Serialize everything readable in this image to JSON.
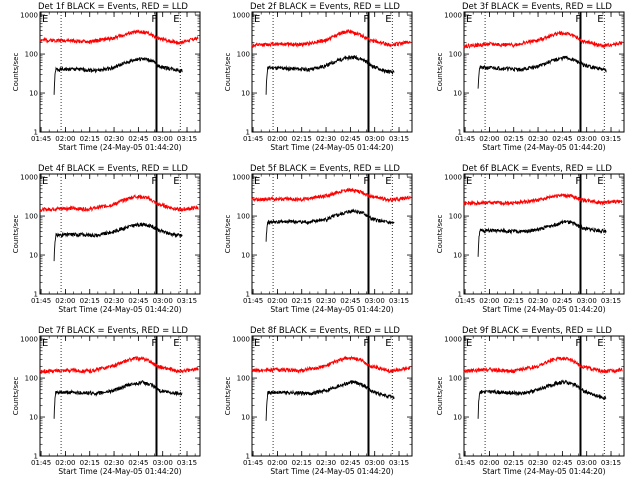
{
  "figure": {
    "ylabel": "Counts/sec",
    "xlabel": "Start Time (24-May-05 01:44:20)",
    "marker_f": "F",
    "marker_e": "E"
  },
  "axes": {
    "x_ticks": [
      "01:45",
      "02:00",
      "02:15",
      "02:30",
      "02:45",
      "03:00",
      "03:15"
    ],
    "x_range": [
      "01:44:20",
      "03:23:00"
    ],
    "y_ticks": [
      "1",
      "10",
      "100",
      "1000"
    ],
    "y_range": [
      1,
      1200
    ],
    "y_scale": "log",
    "dotted_lines_at": [
      "01:57:20",
      "03:10:50"
    ],
    "solid_line_at": "02:56:10",
    "f_at": "02:53:00",
    "e_at": "03:06:30"
  },
  "colors": {
    "events": "#000000",
    "lld": "#ff0000",
    "background": "#ffffff"
  },
  "chart_data": [
    {
      "type": "line",
      "title": "Det 1f BLACK = Events, RED = LLD",
      "series": [
        {
          "name": "Events",
          "color": "#000000",
          "start": "01:53:00",
          "end": "03:12:00",
          "profile": [
            [
              "01:53:00",
              9
            ],
            [
              "01:54:00",
              40
            ],
            [
              "02:05:00",
              41
            ],
            [
              "02:20:00",
              38
            ],
            [
              "02:30:00",
              45
            ],
            [
              "02:40:00",
              65
            ],
            [
              "02:47:00",
              78
            ],
            [
              "02:53:00",
              68
            ],
            [
              "02:58:00",
              48
            ],
            [
              "03:05:00",
              42
            ],
            [
              "03:12:00",
              37
            ]
          ]
        },
        {
          "name": "LLD",
          "color": "#ff0000",
          "start": "01:44:20",
          "end": "03:22:00",
          "profile": [
            [
              "01:44:20",
              230
            ],
            [
              "02:00:00",
              225
            ],
            [
              "02:15:00",
              205
            ],
            [
              "02:30:00",
              260
            ],
            [
              "02:43:00",
              370
            ],
            [
              "02:50:00",
              355
            ],
            [
              "02:57:00",
              250
            ],
            [
              "03:10:00",
              195
            ],
            [
              "03:22:00",
              255
            ]
          ]
        }
      ]
    },
    {
      "type": "line",
      "title": "Det 2f BLACK = Events, RED = LLD",
      "series": [
        {
          "name": "Events",
          "color": "#000000",
          "start": "01:53:00",
          "end": "03:12:00",
          "profile": [
            [
              "01:53:00",
              9
            ],
            [
              "01:54:00",
              45
            ],
            [
              "02:05:00",
              43
            ],
            [
              "02:20:00",
              40
            ],
            [
              "02:30:00",
              50
            ],
            [
              "02:40:00",
              75
            ],
            [
              "02:47:00",
              85
            ],
            [
              "02:53:00",
              72
            ],
            [
              "02:58:00",
              50
            ],
            [
              "03:05:00",
              38
            ],
            [
              "03:12:00",
              33
            ]
          ]
        },
        {
          "name": "LLD",
          "color": "#ff0000",
          "start": "01:44:20",
          "end": "03:22:00",
          "profile": [
            [
              "01:44:20",
              165
            ],
            [
              "02:00:00",
              185
            ],
            [
              "02:15:00",
              175
            ],
            [
              "02:30:00",
              225
            ],
            [
              "02:43:00",
              390
            ],
            [
              "02:50:00",
              330
            ],
            [
              "02:57:00",
              225
            ],
            [
              "03:10:00",
              170
            ],
            [
              "03:22:00",
              205
            ]
          ]
        }
      ]
    },
    {
      "type": "line",
      "title": "Det 3f BLACK = Events, RED = LLD",
      "series": [
        {
          "name": "Events",
          "color": "#000000",
          "start": "01:53:00",
          "end": "03:12:00",
          "profile": [
            [
              "01:53:00",
              13
            ],
            [
              "01:54:00",
              45
            ],
            [
              "02:05:00",
              44
            ],
            [
              "02:20:00",
              40
            ],
            [
              "02:30:00",
              48
            ],
            [
              "02:40:00",
              70
            ],
            [
              "02:47:00",
              82
            ],
            [
              "02:53:00",
              68
            ],
            [
              "02:58:00",
              52
            ],
            [
              "03:05:00",
              45
            ],
            [
              "03:12:00",
              38
            ]
          ]
        },
        {
          "name": "LLD",
          "color": "#ff0000",
          "start": "01:44:20",
          "end": "03:22:00",
          "profile": [
            [
              "01:44:20",
              160
            ],
            [
              "02:00:00",
              180
            ],
            [
              "02:15:00",
              170
            ],
            [
              "02:30:00",
              225
            ],
            [
              "02:43:00",
              345
            ],
            [
              "02:50:00",
              320
            ],
            [
              "02:57:00",
              215
            ],
            [
              "03:10:00",
              160
            ],
            [
              "03:22:00",
              195
            ]
          ]
        }
      ]
    },
    {
      "type": "line",
      "title": "Det 4f BLACK = Events, RED = LLD",
      "series": [
        {
          "name": "Events",
          "color": "#000000",
          "start": "01:53:00",
          "end": "03:12:00",
          "profile": [
            [
              "01:53:00",
              7
            ],
            [
              "01:54:00",
              32
            ],
            [
              "02:05:00",
              34
            ],
            [
              "02:20:00",
              32
            ],
            [
              "02:30:00",
              40
            ],
            [
              "02:40:00",
              55
            ],
            [
              "02:47:00",
              62
            ],
            [
              "02:53:00",
              55
            ],
            [
              "02:58:00",
              42
            ],
            [
              "03:05:00",
              35
            ],
            [
              "03:12:00",
              31
            ]
          ]
        },
        {
          "name": "LLD",
          "color": "#ff0000",
          "start": "01:44:20",
          "end": "03:22:00",
          "profile": [
            [
              "01:44:20",
              145
            ],
            [
              "02:00:00",
              160
            ],
            [
              "02:15:00",
              150
            ],
            [
              "02:30:00",
              200
            ],
            [
              "02:43:00",
              320
            ],
            [
              "02:50:00",
              300
            ],
            [
              "02:57:00",
              200
            ],
            [
              "03:10:00",
              145
            ],
            [
              "03:22:00",
              165
            ]
          ]
        }
      ]
    },
    {
      "type": "line",
      "title": "Det 5f BLACK = Events, RED = LLD",
      "series": [
        {
          "name": "Events",
          "color": "#000000",
          "start": "01:53:00",
          "end": "03:12:00",
          "profile": [
            [
              "01:53:00",
              22
            ],
            [
              "01:54:00",
              70
            ],
            [
              "02:05:00",
              72
            ],
            [
              "02:20:00",
              70
            ],
            [
              "02:30:00",
              82
            ],
            [
              "02:40:00",
              115
            ],
            [
              "02:47:00",
              140
            ],
            [
              "02:53:00",
              118
            ],
            [
              "02:58:00",
              85
            ],
            [
              "03:05:00",
              72
            ],
            [
              "03:12:00",
              65
            ]
          ]
        },
        {
          "name": "LLD",
          "color": "#ff0000",
          "start": "01:44:20",
          "end": "03:22:00",
          "profile": [
            [
              "01:44:20",
              260
            ],
            [
              "02:00:00",
              280
            ],
            [
              "02:15:00",
              265
            ],
            [
              "02:30:00",
              330
            ],
            [
              "02:43:00",
              470
            ],
            [
              "02:50:00",
              430
            ],
            [
              "02:57:00",
              320
            ],
            [
              "03:10:00",
              260
            ],
            [
              "03:22:00",
              300
            ]
          ]
        }
      ]
    },
    {
      "type": "line",
      "title": "Det 6f BLACK = Events, RED = LLD",
      "series": [
        {
          "name": "Events",
          "color": "#000000",
          "start": "01:53:00",
          "end": "03:12:00",
          "profile": [
            [
              "01:53:00",
              9
            ],
            [
              "01:54:00",
              42
            ],
            [
              "02:05:00",
              42
            ],
            [
              "02:20:00",
              40
            ],
            [
              "02:30:00",
              45
            ],
            [
              "02:40:00",
              60
            ],
            [
              "02:47:00",
              72
            ],
            [
              "02:53:00",
              62
            ],
            [
              "02:58:00",
              48
            ],
            [
              "03:05:00",
              44
            ],
            [
              "03:12:00",
              40
            ]
          ]
        },
        {
          "name": "LLD",
          "color": "#ff0000",
          "start": "01:44:20",
          "end": "03:22:00",
          "profile": [
            [
              "01:44:20",
              210
            ],
            [
              "02:00:00",
              220
            ],
            [
              "02:15:00",
              215
            ],
            [
              "02:30:00",
              255
            ],
            [
              "02:43:00",
              345
            ],
            [
              "02:50:00",
              330
            ],
            [
              "02:57:00",
              260
            ],
            [
              "03:10:00",
              220
            ],
            [
              "03:22:00",
              240
            ]
          ]
        }
      ]
    },
    {
      "type": "line",
      "title": "Det 7f BLACK = Events, RED = LLD",
      "series": [
        {
          "name": "Events",
          "color": "#000000",
          "start": "01:53:00",
          "end": "03:12:00",
          "profile": [
            [
              "01:53:00",
              9
            ],
            [
              "01:54:00",
              42
            ],
            [
              "02:05:00",
              43
            ],
            [
              "02:20:00",
              40
            ],
            [
              "02:30:00",
              48
            ],
            [
              "02:40:00",
              68
            ],
            [
              "02:47:00",
              78
            ],
            [
              "02:53:00",
              66
            ],
            [
              "02:58:00",
              48
            ],
            [
              "03:05:00",
              42
            ],
            [
              "03:12:00",
              40
            ]
          ]
        },
        {
          "name": "LLD",
          "color": "#ff0000",
          "start": "01:44:20",
          "end": "03:22:00",
          "profile": [
            [
              "01:44:20",
              145
            ],
            [
              "02:00:00",
              160
            ],
            [
              "02:15:00",
              150
            ],
            [
              "02:30:00",
              205
            ],
            [
              "02:43:00",
              325
            ],
            [
              "02:50:00",
              300
            ],
            [
              "02:57:00",
              200
            ],
            [
              "03:10:00",
              145
            ],
            [
              "03:22:00",
              170
            ]
          ]
        }
      ]
    },
    {
      "type": "line",
      "title": "Det 8f BLACK = Events, RED = LLD",
      "series": [
        {
          "name": "Events",
          "color": "#000000",
          "start": "01:53:00",
          "end": "03:12:00",
          "profile": [
            [
              "01:53:00",
              8
            ],
            [
              "01:54:00",
              42
            ],
            [
              "02:05:00",
              43
            ],
            [
              "02:20:00",
              40
            ],
            [
              "02:30:00",
              48
            ],
            [
              "02:40:00",
              68
            ],
            [
              "02:47:00",
              80
            ],
            [
              "02:53:00",
              66
            ],
            [
              "02:58:00",
              46
            ],
            [
              "03:05:00",
              36
            ],
            [
              "03:12:00",
              32
            ]
          ]
        },
        {
          "name": "LLD",
          "color": "#ff0000",
          "start": "01:44:20",
          "end": "03:22:00",
          "profile": [
            [
              "01:44:20",
              155
            ],
            [
              "02:00:00",
              165
            ],
            [
              "02:15:00",
              155
            ],
            [
              "02:30:00",
              205
            ],
            [
              "02:43:00",
              330
            ],
            [
              "02:50:00",
              305
            ],
            [
              "02:57:00",
              205
            ],
            [
              "03:10:00",
              150
            ],
            [
              "03:22:00",
              185
            ]
          ]
        }
      ]
    },
    {
      "type": "line",
      "title": "Det 9f BLACK = Events, RED = LLD",
      "series": [
        {
          "name": "Events",
          "color": "#000000",
          "start": "01:53:00",
          "end": "03:12:00",
          "profile": [
            [
              "01:53:00",
              9
            ],
            [
              "01:54:00",
              45
            ],
            [
              "02:05:00",
              44
            ],
            [
              "02:20:00",
              40
            ],
            [
              "02:30:00",
              50
            ],
            [
              "02:40:00",
              70
            ],
            [
              "02:47:00",
              80
            ],
            [
              "02:53:00",
              66
            ],
            [
              "02:58:00",
              46
            ],
            [
              "03:05:00",
              36
            ],
            [
              "03:12:00",
              30
            ]
          ]
        },
        {
          "name": "LLD",
          "color": "#ff0000",
          "start": "01:44:20",
          "end": "03:22:00",
          "profile": [
            [
              "01:44:20",
              150
            ],
            [
              "02:00:00",
              165
            ],
            [
              "02:15:00",
              150
            ],
            [
              "02:30:00",
              200
            ],
            [
              "02:43:00",
              330
            ],
            [
              "02:50:00",
              300
            ],
            [
              "02:57:00",
              200
            ],
            [
              "03:10:00",
              145
            ],
            [
              "03:22:00",
              165
            ]
          ]
        }
      ]
    }
  ]
}
